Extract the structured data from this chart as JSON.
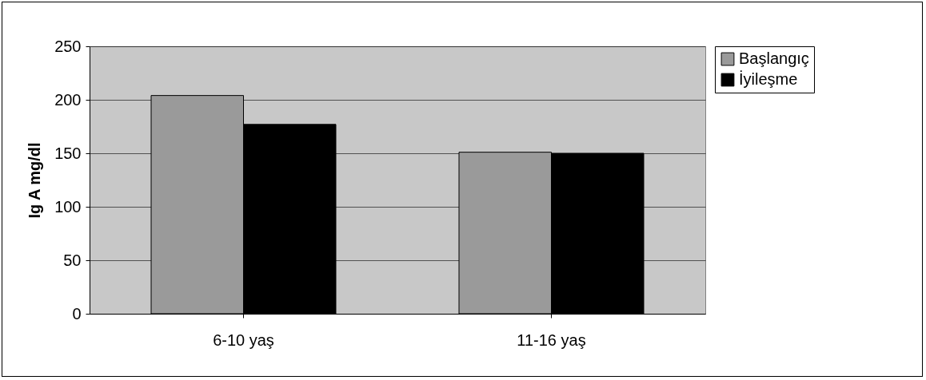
{
  "chart_data": {
    "type": "bar",
    "ylabel": "Ig A mg/dl",
    "categories": [
      "6-10 yaş",
      "11-16 yaş"
    ],
    "series": [
      {
        "name": "Başlangıç",
        "color": "#9a9a9a",
        "values": [
          204,
          151
        ]
      },
      {
        "name": "İyileşme",
        "color": "#000000",
        "values": [
          177,
          150
        ]
      }
    ],
    "ylim": [
      0,
      250
    ],
    "yticks": [
      0,
      50,
      100,
      150,
      200,
      250
    ],
    "grid": "y",
    "legend": "right"
  }
}
